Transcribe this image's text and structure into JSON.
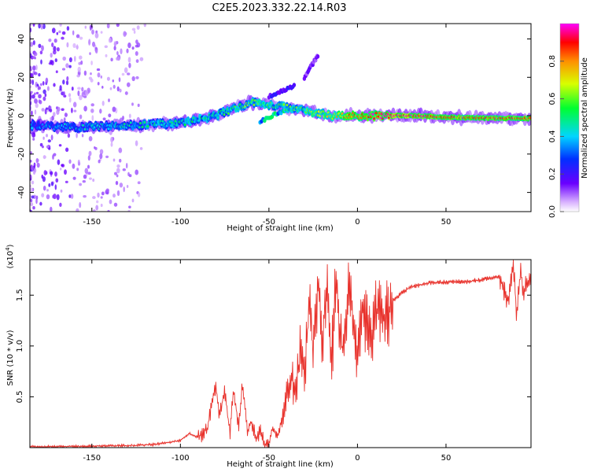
{
  "title": "C2E5.2023.332.22.14.R03",
  "colors": {
    "line": "#e8322c",
    "axis": "#000000",
    "background": "#ffffff"
  },
  "chart_data": [
    {
      "type": "heatmap",
      "name": "spectrogram",
      "xlabel": "Height of straight line (km)",
      "ylabel": "Frequency (Hz)",
      "xlim": [
        -185,
        98
      ],
      "ylim": [
        -50,
        48
      ],
      "xticks": [
        -150,
        -100,
        -50,
        0,
        50
      ],
      "yticks": [
        -40,
        -20,
        0,
        20,
        40
      ],
      "colorbar": {
        "label": "Normalized spectral amplitude",
        "range": [
          0.0,
          1.0
        ],
        "ticks": [
          0.0,
          0.2,
          0.4,
          0.6,
          0.8
        ]
      },
      "ridge": [
        {
          "x": -185,
          "y": -5,
          "a": 0.3
        },
        {
          "x": -160,
          "y": -6,
          "a": 0.35
        },
        {
          "x": -130,
          "y": -5,
          "a": 0.4
        },
        {
          "x": -100,
          "y": -4,
          "a": 0.45
        },
        {
          "x": -80,
          "y": 0,
          "a": 0.45
        },
        {
          "x": -60,
          "y": 7,
          "a": 0.55
        },
        {
          "x": -45,
          "y": 5,
          "a": 0.5
        },
        {
          "x": -30,
          "y": 3,
          "a": 0.55
        },
        {
          "x": -15,
          "y": 0,
          "a": 0.65
        },
        {
          "x": 0,
          "y": 0,
          "a": 0.85
        },
        {
          "x": 30,
          "y": 0,
          "a": 0.95
        },
        {
          "x": 60,
          "y": -1,
          "a": 0.8
        },
        {
          "x": 98,
          "y": -1.5,
          "a": 0.85
        }
      ],
      "branches": [
        {
          "from": [
            -50,
            10
          ],
          "to": [
            -35,
            16
          ],
          "a": 0.2
        },
        {
          "from": [
            -30,
            20
          ],
          "to": [
            -22,
            32
          ],
          "a": 0.15
        },
        {
          "from": [
            -55,
            -3
          ],
          "to": [
            -38,
            4
          ],
          "a": 0.45
        }
      ]
    },
    {
      "type": "line",
      "name": "snr",
      "xlabel": "Height of straight line (km)",
      "ylabel": "SNR (10 * v/v)",
      "y_multiplier_label": "(x10",
      "y_multiplier_exp": "4",
      "xlim": [
        -185,
        98
      ],
      "ylim": [
        0,
        1.85
      ],
      "xticks": [
        -150,
        -100,
        -50,
        0,
        50
      ],
      "yticks": [
        0.5,
        1.0,
        1.5
      ],
      "ytick_labels": [
        "0.5",
        "1.0",
        "1.5"
      ],
      "series": [
        {
          "name": "SNR",
          "x": [
            -185,
            -170,
            -150,
            -130,
            -115,
            -100,
            -95,
            -90,
            -85,
            -80,
            -78,
            -75,
            -72,
            -70,
            -67,
            -65,
            -62,
            -60,
            -57,
            -55,
            -52,
            -50,
            -48,
            -45,
            -42,
            -40,
            -37,
            -35,
            -32,
            -30,
            -27,
            -25,
            -22,
            -20,
            -17,
            -15,
            -12,
            -10,
            -8,
            -5,
            -3,
            0,
            3,
            5,
            8,
            10,
            12,
            15,
            18,
            20,
            25,
            30,
            35,
            40,
            50,
            60,
            70,
            80,
            85,
            88,
            90,
            92,
            94,
            96,
            98
          ],
          "y": [
            0.01,
            0.01,
            0.015,
            0.02,
            0.03,
            0.07,
            0.14,
            0.1,
            0.18,
            0.6,
            0.32,
            0.55,
            0.15,
            0.58,
            0.2,
            0.62,
            0.15,
            0.25,
            0.08,
            0.18,
            0.03,
            0.04,
            0.18,
            0.12,
            0.3,
            0.55,
            0.7,
            0.5,
            1.0,
            0.72,
            1.4,
            0.9,
            1.66,
            1.05,
            1.7,
            0.75,
            1.65,
            1.2,
            0.9,
            1.6,
            1.3,
            0.9,
            1.45,
            1.2,
            1.1,
            1.4,
            1.3,
            1.28,
            1.35,
            1.45,
            1.52,
            1.58,
            1.6,
            1.62,
            1.63,
            1.63,
            1.65,
            1.68,
            1.45,
            1.8,
            1.3,
            1.75,
            1.5,
            1.65,
            1.6
          ]
        }
      ]
    }
  ]
}
